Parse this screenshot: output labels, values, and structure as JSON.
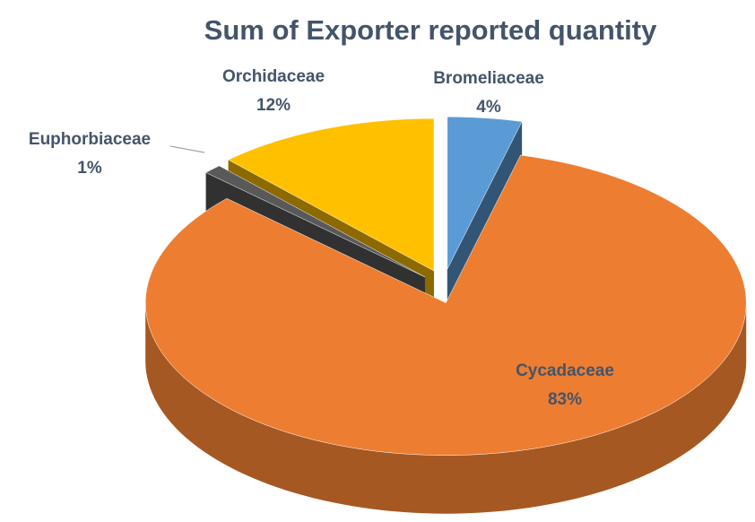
{
  "chart_data": {
    "type": "pie",
    "title": "Sum of Exporter reported quantity",
    "categories": [
      "Bromeliaceae",
      "Cycadaceae",
      "Euphorbiaceae",
      "Orchidaceae"
    ],
    "values": [
      4,
      83,
      1,
      12
    ],
    "value_labels": [
      "4%",
      "83%",
      "1%",
      "12%"
    ],
    "colors": [
      "#5b9bd5",
      "#ed7d31",
      "#595959",
      "#ffc000"
    ]
  }
}
